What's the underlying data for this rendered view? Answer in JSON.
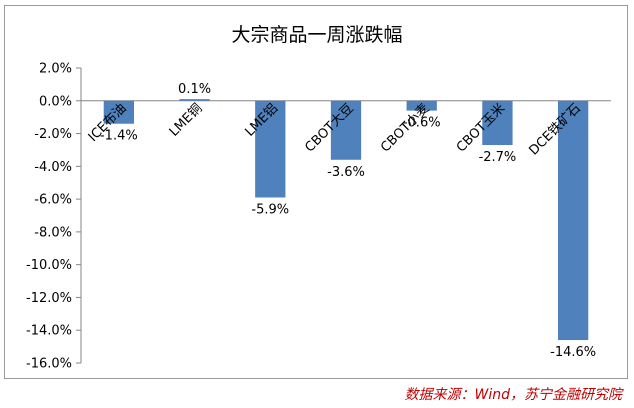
{
  "chart_data": {
    "type": "bar",
    "title": "大宗商品一周涨跌幅",
    "categories": [
      "ICE布油",
      "LME铜",
      "LME铝",
      "CBOT大豆",
      "CBOT小麦",
      "CBOT玉米",
      "DCE铁矿石"
    ],
    "values": [
      -1.4,
      0.1,
      -5.9,
      -3.6,
      -0.6,
      -2.7,
      -14.6
    ],
    "data_labels": [
      "-1.4%",
      "0.1%",
      "-5.9%",
      "-3.6%",
      "-0.6%",
      "-2.7%",
      "-14.6%"
    ],
    "yticks": [
      2,
      0,
      -2,
      -4,
      -6,
      -8,
      -10,
      -12,
      -14,
      -16
    ],
    "ytick_labels": [
      "2.0%",
      "0.0%",
      "-2.0%",
      "-4.0%",
      "-6.0%",
      "-8.0%",
      "-10.0%",
      "-12.0%",
      "-14.0%",
      "-16.0%"
    ],
    "ylim": [
      -16,
      2
    ],
    "xlabel": "",
    "ylabel": "",
    "grid": false,
    "bar_color": "#4f81bd"
  },
  "source_note": "数据来源：Wind，苏宁金融研究院"
}
